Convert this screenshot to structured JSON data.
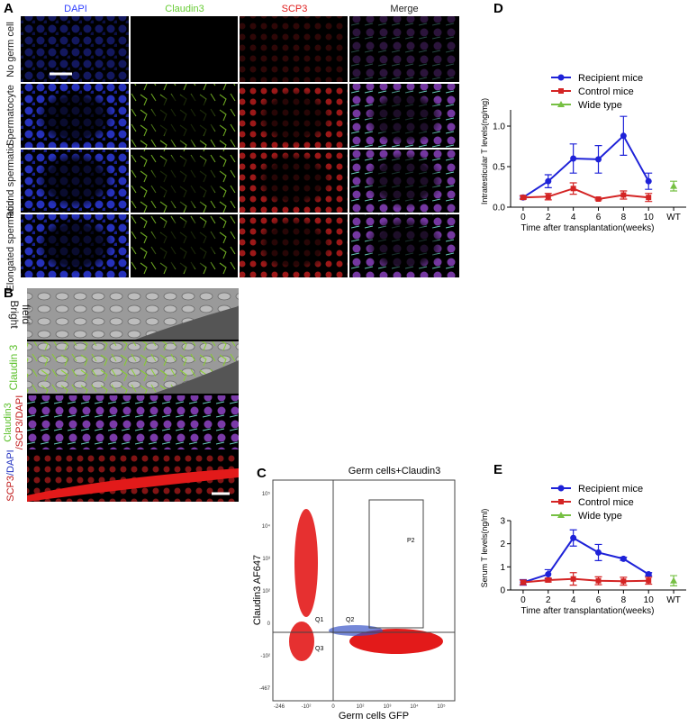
{
  "panel_labels": [
    "A",
    "B",
    "C",
    "D",
    "E"
  ],
  "panel_a": {
    "columns": [
      "DAPI",
      "Claudin3",
      "SCP3",
      "Merge"
    ],
    "rows": [
      "No germ cell",
      "Spermatocyte",
      "Round spermatid",
      "Elongated spermatid"
    ]
  },
  "panel_b": {
    "rows": [
      [
        "Bright",
        "field"
      ],
      [
        "Claudin 3"
      ],
      [
        "Claudin3",
        "/SCP3/DAPI"
      ],
      [
        "SCP3",
        "/DAPI"
      ]
    ]
  },
  "panel_c": {
    "title": "Germ cells+Claudin3",
    "x_label": "Germ cells  GFP",
    "y_label": "Claudin3 AF647",
    "gates": [
      "P2",
      "Q1",
      "Q2",
      "Q3"
    ],
    "y_ticks": [
      "10⁵",
      "10⁴",
      "10³",
      "10²",
      "0",
      "-10²",
      "-467"
    ],
    "x_ticks": [
      "-246",
      "-10²",
      "0",
      "10²",
      "10³",
      "10⁴",
      "10⁵"
    ]
  },
  "chart_data": [
    {
      "type": "line",
      "y_label": "Intratesticular T levels(ng/mg)",
      "x_label": "Time after transplantation(weeks)",
      "categories": [
        "0",
        "2",
        "4",
        "6",
        "8",
        "10",
        "WT"
      ],
      "ylim": [
        0,
        1.2
      ],
      "yticks": [
        {
          "value": 0,
          "label": "0.0"
        },
        {
          "value": 0.5,
          "label": "0.5"
        },
        {
          "value": 1,
          "label": "1.0"
        }
      ],
      "legend": "upper right",
      "series": [
        {
          "name": "Recipient mice",
          "color": "#1e22d8",
          "marker": "circle",
          "values": [
            0.12,
            0.32,
            0.6,
            0.59,
            0.88,
            0.32,
            null
          ],
          "errors": [
            0.02,
            0.08,
            0.18,
            0.17,
            0.24,
            0.1,
            null
          ]
        },
        {
          "name": "Control mice",
          "color": "#d42424",
          "marker": "square",
          "values": [
            0.12,
            0.13,
            0.23,
            0.1,
            0.15,
            0.12,
            null
          ],
          "errors": [
            0.02,
            0.04,
            0.07,
            0.01,
            0.05,
            0.05,
            null
          ]
        },
        {
          "name": "Wide type",
          "color": "#76c043",
          "marker": "triangle",
          "values": [
            null,
            null,
            null,
            null,
            null,
            null,
            0.26
          ],
          "errors": [
            null,
            null,
            null,
            null,
            null,
            null,
            0.06
          ]
        }
      ]
    },
    {
      "type": "line",
      "y_label": "Serum T levels(ng/ml)",
      "x_label": "Time after transplantation(weeks)",
      "categories": [
        "0",
        "2",
        "4",
        "6",
        "8",
        "10",
        "WT"
      ],
      "ylim": [
        0,
        3
      ],
      "yticks": [
        0,
        1,
        2,
        3
      ],
      "legend": "upper right",
      "series": [
        {
          "name": "Recipient mice",
          "color": "#1e22d8",
          "marker": "circle",
          "values": [
            0.33,
            0.68,
            2.25,
            1.62,
            1.35,
            0.68,
            null
          ],
          "errors": [
            0.12,
            0.2,
            0.35,
            0.35,
            0.07,
            0.07,
            null
          ]
        },
        {
          "name": "Control mice",
          "color": "#d42424",
          "marker": "square",
          "values": [
            0.33,
            0.43,
            0.48,
            0.4,
            0.38,
            0.4,
            null
          ],
          "errors": [
            0.1,
            0.08,
            0.27,
            0.17,
            0.17,
            0.15,
            null
          ]
        },
        {
          "name": "Wide type",
          "color": "#76c043",
          "marker": "triangle",
          "values": [
            null,
            null,
            null,
            null,
            null,
            null,
            0.4
          ],
          "errors": [
            null,
            null,
            null,
            null,
            null,
            null,
            0.22
          ]
        }
      ]
    }
  ]
}
